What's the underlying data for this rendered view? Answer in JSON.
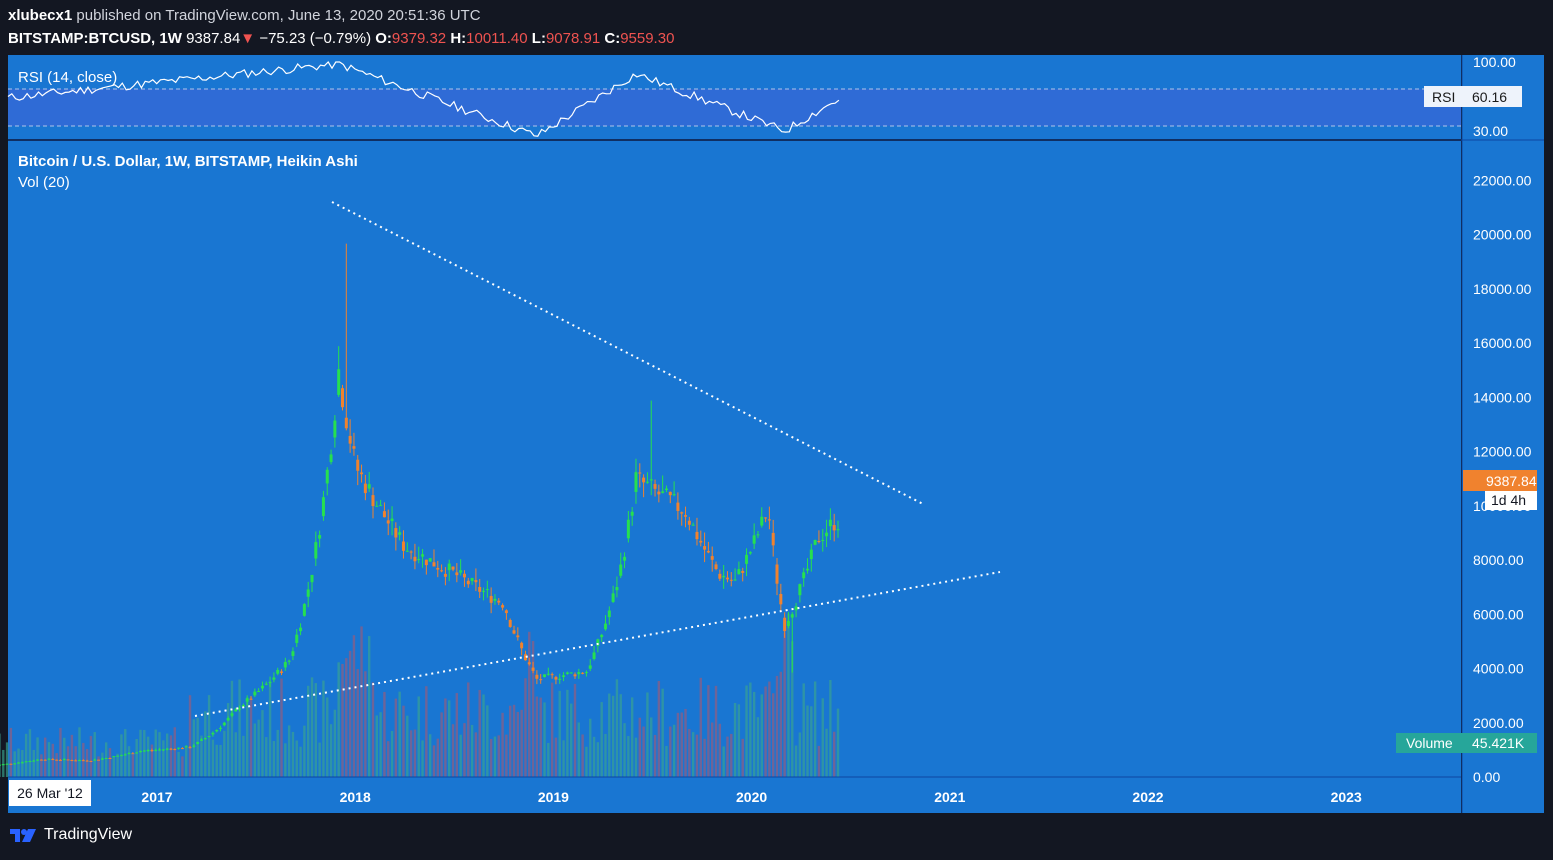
{
  "header": {
    "author": "xlubecx1",
    "published": "published on TradingView.com, June 13, 2020 20:51:36 UTC",
    "symbol": "BITSTAMP:BTCUSD, 1W",
    "last": "9387.84",
    "arrow": "▼",
    "change": "−75.23 (−0.79%)",
    "o_label": "O:",
    "o_value": "9379.32",
    "h_label": "H:",
    "h_value": "10011.40",
    "l_label": "L:",
    "l_value": "9078.91",
    "c_label": "C:",
    "c_value": "9559.30"
  },
  "rsi_pane": {
    "title": "RSI (14, close)",
    "badge_label": "RSI",
    "badge_value": "60.16",
    "ticks": [
      "100.00",
      "30.00"
    ]
  },
  "main_pane": {
    "title": "Bitcoin / U.S. Dollar, 1W, BITSTAMP, Heikin Ashi",
    "vol_title": "Vol (20)",
    "price_badge": "9387.84",
    "countdown": "1d 4h",
    "volume_label": "Volume",
    "volume_value": "45.421K",
    "date_badge": "26 Mar '12"
  },
  "footer": {
    "brand": "TradingView"
  },
  "colors": {
    "background": "#1976d2",
    "up": "#26e04f",
    "down": "#f0822e",
    "rsi_band": "#2f6bd6",
    "dark": "#131722"
  },
  "chart_data": {
    "type": "candlestick",
    "title": "Bitcoin / U.S. Dollar, 1W, BITSTAMP, Heikin Ashi",
    "x_ticks": [
      "2017",
      "2018",
      "2019",
      "2020",
      "2021",
      "2022",
      "2023"
    ],
    "y_ticks": [
      "22000.00",
      "20000.00",
      "18000.00",
      "16000.00",
      "14000.00",
      "12000.00",
      "10000.00",
      "8000.00",
      "6000.00",
      "4000.00",
      "2000.00",
      "0.00"
    ],
    "ylim": [
      0,
      22000
    ],
    "series": [
      {
        "x": "2016-03",
        "close": 420
      },
      {
        "x": "2016-06",
        "close": 660
      },
      {
        "x": "2016-09",
        "close": 610
      },
      {
        "x": "2016-12",
        "close": 960
      },
      {
        "x": "2017-03",
        "close": 1100
      },
      {
        "x": "2017-06",
        "close": 2600
      },
      {
        "x": "2017-09",
        "close": 4300
      },
      {
        "x": "2017-12",
        "close": 15000
      },
      {
        "x": "2017-12-17",
        "high": 19666
      },
      {
        "x": "2018-01",
        "close": 11500
      },
      {
        "x": "2018-04",
        "close": 8500
      },
      {
        "x": "2018-07",
        "close": 7500
      },
      {
        "x": "2018-10",
        "close": 6400
      },
      {
        "x": "2018-12",
        "close": 3600
      },
      {
        "x": "2019-03",
        "close": 3900
      },
      {
        "x": "2019-05",
        "close": 7500
      },
      {
        "x": "2019-06",
        "close": 11000
      },
      {
        "x": "2019-06-26",
        "high": 13880
      },
      {
        "x": "2019-09",
        "close": 9800
      },
      {
        "x": "2019-11",
        "close": 7500
      },
      {
        "x": "2019-12",
        "close": 7200
      },
      {
        "x": "2020-02",
        "close": 9900
      },
      {
        "x": "2020-03",
        "close": 5600
      },
      {
        "x": "2020-03-13",
        "low": 3850
      },
      {
        "x": "2020-05",
        "close": 8800
      },
      {
        "x": "2020-06",
        "close": 9400
      }
    ],
    "last_price": 9387.84,
    "rsi": {
      "levels": [
        70,
        30
      ],
      "last": 60.16,
      "series": [
        {
          "x": "2016-03",
          "value": 62
        },
        {
          "x": "2017-12",
          "value": 98
        },
        {
          "x": "2018-12",
          "value": 25
        },
        {
          "x": "2019-06",
          "value": 88
        },
        {
          "x": "2020-03",
          "value": 30
        },
        {
          "x": "2020-06",
          "value": 60
        }
      ]
    },
    "volume": {
      "last": "45.421K"
    }
  }
}
